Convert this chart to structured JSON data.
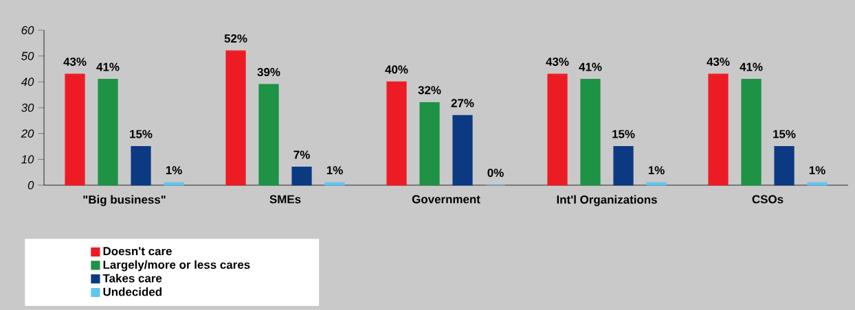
{
  "chart_data": {
    "type": "bar",
    "categories": [
      "\"Big business\"",
      "SMEs",
      "Government",
      "Int'l Organizations",
      "CSOs"
    ],
    "series": [
      {
        "name": "Doesn't care",
        "color": "#ed1c24",
        "values": [
          43,
          52,
          40,
          43,
          43
        ],
        "value_labels": [
          "43%",
          "52%",
          "40%",
          "43%",
          "43%"
        ]
      },
      {
        "name": "Largely/more or less cares",
        "color": "#1e9245",
        "values": [
          41,
          39,
          32,
          41,
          41
        ],
        "value_labels": [
          "41%",
          "39%",
          "32%",
          "41%",
          "41%"
        ]
      },
      {
        "name": "Takes care",
        "color": "#0c3a82",
        "values": [
          15,
          7,
          27,
          15,
          15
        ],
        "value_labels": [
          "15%",
          "7%",
          "27%",
          "15%",
          "15%"
        ]
      },
      {
        "name": "Undecided",
        "color": "#5fc6f0",
        "values": [
          1,
          1,
          0,
          1,
          1
        ],
        "value_labels": [
          "1%",
          "1%",
          "0%",
          "1%",
          "1%"
        ]
      }
    ],
    "ylim": [
      0,
      60
    ],
    "yticks": [
      0,
      10,
      20,
      30,
      40,
      50,
      60
    ],
    "legend": "bottom left"
  }
}
